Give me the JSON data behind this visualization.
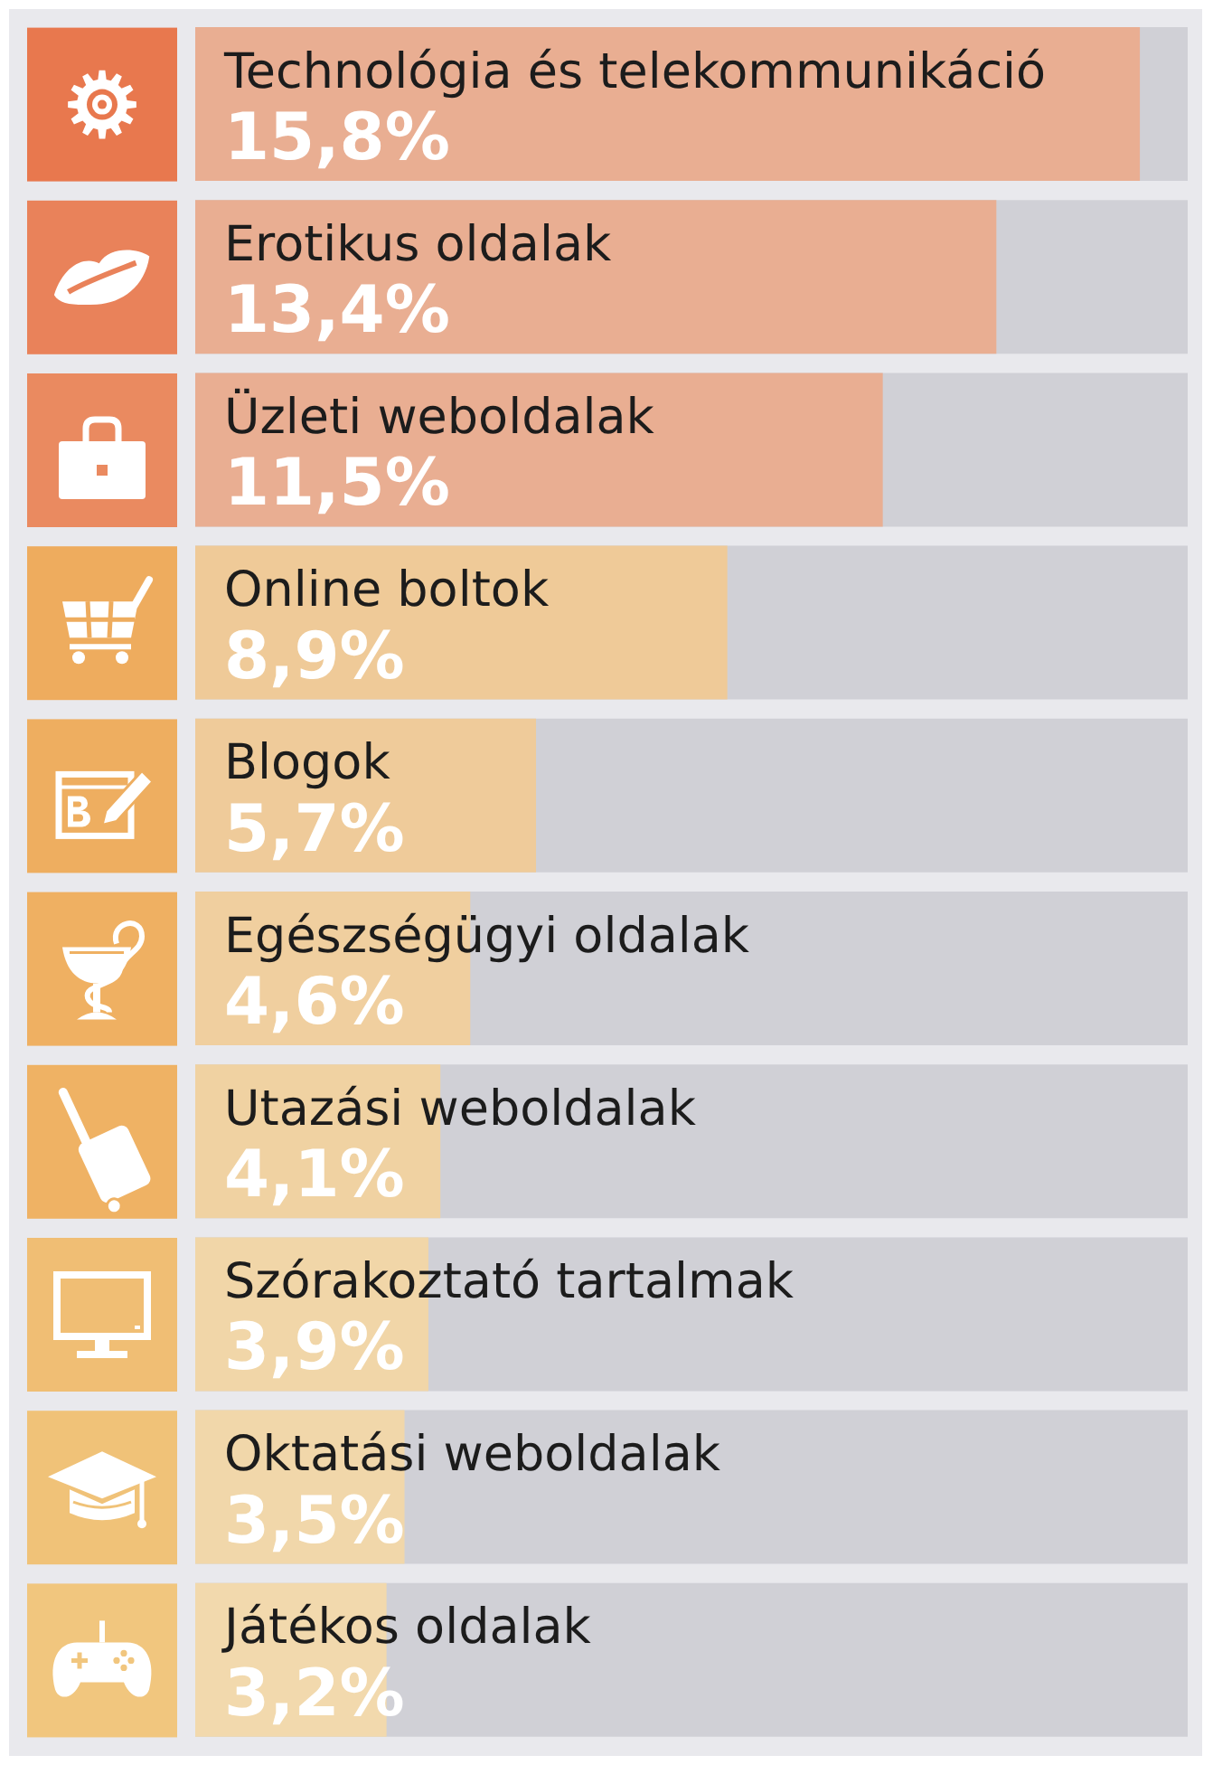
{
  "chart_data": {
    "type": "bar",
    "orientation": "horizontal",
    "categories": [
      "Technológia és telekommunikáció",
      "Erotikus oldalak",
      "Üzleti weboldalak",
      "Online boltok",
      "Blogok",
      "Egészségügyi oldalak",
      "Utazási weboldalak",
      "Szórakoztató tartalmak",
      "Oktatási weboldalak",
      "Játékos oldalak"
    ],
    "values": [
      15.8,
      13.4,
      11.5,
      8.9,
      5.7,
      4.6,
      4.1,
      3.9,
      3.5,
      3.2
    ],
    "colors": [
      "#e9ae92",
      "#e9ae92",
      "#e9ae92",
      "#efca98",
      "#efcb9a",
      "#f0cf9f",
      "#f0d2a2",
      "#f1d6a8",
      "#f1d7aa",
      "#f2d9ad"
    ],
    "value_labels": [
      "15,8%",
      "13,4%",
      "11,5%",
      "8,9%",
      "5,7%",
      "4,6%",
      "4,1%",
      "3,9%",
      "3,5%",
      "3,2%"
    ],
    "xlim": [
      0,
      16.6
    ],
    "tick_labels": "y"
  }
}
